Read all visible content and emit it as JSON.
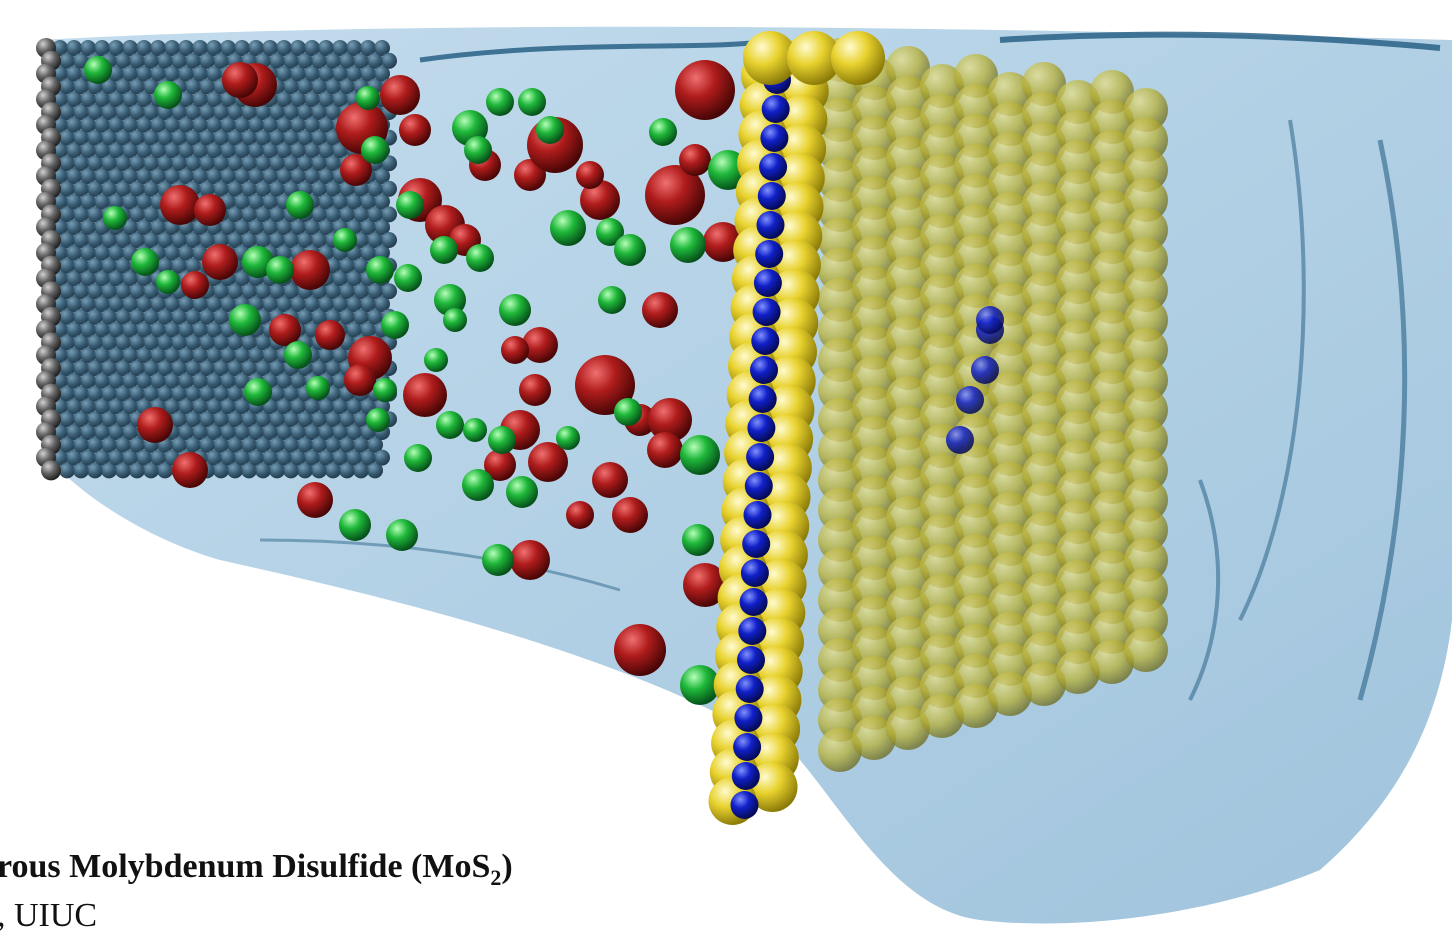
{
  "figure": {
    "caption_title_main": "orous Molybdenum Disulfide (MoS",
    "caption_title_sub": "2",
    "caption_title_end": ")",
    "caption_credit": "u, UIUC"
  },
  "colors": {
    "water": "#9cc4dd",
    "water_edge": "#1f5a80",
    "graphene": "#2a4f66",
    "graphene_edge_atoms": "#555555",
    "ion_red": "#b01c1c",
    "ion_green": "#1fb83a",
    "sulfur": "#e8d22e",
    "molybdenum": "#1020c8"
  },
  "icons": {
    "graphene_sheet": "graphene-sheet-icon",
    "mos2_membrane": "mos2-membrane-icon",
    "water_box": "water-box-icon"
  }
}
